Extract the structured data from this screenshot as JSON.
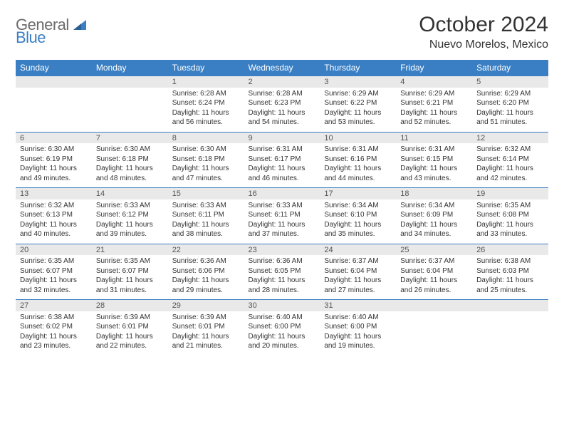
{
  "logo": {
    "text1": "General",
    "text2": "Blue",
    "color1": "#6b6b6b",
    "color2": "#3a7fc4"
  },
  "title": "October 2024",
  "location": "Nuevo Morelos, Mexico",
  "header_bg": "#3a7fc4",
  "daynum_bg": "#e9e9e9",
  "weekdays": [
    "Sunday",
    "Monday",
    "Tuesday",
    "Wednesday",
    "Thursday",
    "Friday",
    "Saturday"
  ],
  "weeks": [
    [
      {
        "day": "",
        "lines": []
      },
      {
        "day": "",
        "lines": []
      },
      {
        "day": "1",
        "lines": [
          "Sunrise: 6:28 AM",
          "Sunset: 6:24 PM",
          "Daylight: 11 hours and 56 minutes."
        ]
      },
      {
        "day": "2",
        "lines": [
          "Sunrise: 6:28 AM",
          "Sunset: 6:23 PM",
          "Daylight: 11 hours and 54 minutes."
        ]
      },
      {
        "day": "3",
        "lines": [
          "Sunrise: 6:29 AM",
          "Sunset: 6:22 PM",
          "Daylight: 11 hours and 53 minutes."
        ]
      },
      {
        "day": "4",
        "lines": [
          "Sunrise: 6:29 AM",
          "Sunset: 6:21 PM",
          "Daylight: 11 hours and 52 minutes."
        ]
      },
      {
        "day": "5",
        "lines": [
          "Sunrise: 6:29 AM",
          "Sunset: 6:20 PM",
          "Daylight: 11 hours and 51 minutes."
        ]
      }
    ],
    [
      {
        "day": "6",
        "lines": [
          "Sunrise: 6:30 AM",
          "Sunset: 6:19 PM",
          "Daylight: 11 hours and 49 minutes."
        ]
      },
      {
        "day": "7",
        "lines": [
          "Sunrise: 6:30 AM",
          "Sunset: 6:18 PM",
          "Daylight: 11 hours and 48 minutes."
        ]
      },
      {
        "day": "8",
        "lines": [
          "Sunrise: 6:30 AM",
          "Sunset: 6:18 PM",
          "Daylight: 11 hours and 47 minutes."
        ]
      },
      {
        "day": "9",
        "lines": [
          "Sunrise: 6:31 AM",
          "Sunset: 6:17 PM",
          "Daylight: 11 hours and 46 minutes."
        ]
      },
      {
        "day": "10",
        "lines": [
          "Sunrise: 6:31 AM",
          "Sunset: 6:16 PM",
          "Daylight: 11 hours and 44 minutes."
        ]
      },
      {
        "day": "11",
        "lines": [
          "Sunrise: 6:31 AM",
          "Sunset: 6:15 PM",
          "Daylight: 11 hours and 43 minutes."
        ]
      },
      {
        "day": "12",
        "lines": [
          "Sunrise: 6:32 AM",
          "Sunset: 6:14 PM",
          "Daylight: 11 hours and 42 minutes."
        ]
      }
    ],
    [
      {
        "day": "13",
        "lines": [
          "Sunrise: 6:32 AM",
          "Sunset: 6:13 PM",
          "Daylight: 11 hours and 40 minutes."
        ]
      },
      {
        "day": "14",
        "lines": [
          "Sunrise: 6:33 AM",
          "Sunset: 6:12 PM",
          "Daylight: 11 hours and 39 minutes."
        ]
      },
      {
        "day": "15",
        "lines": [
          "Sunrise: 6:33 AM",
          "Sunset: 6:11 PM",
          "Daylight: 11 hours and 38 minutes."
        ]
      },
      {
        "day": "16",
        "lines": [
          "Sunrise: 6:33 AM",
          "Sunset: 6:11 PM",
          "Daylight: 11 hours and 37 minutes."
        ]
      },
      {
        "day": "17",
        "lines": [
          "Sunrise: 6:34 AM",
          "Sunset: 6:10 PM",
          "Daylight: 11 hours and 35 minutes."
        ]
      },
      {
        "day": "18",
        "lines": [
          "Sunrise: 6:34 AM",
          "Sunset: 6:09 PM",
          "Daylight: 11 hours and 34 minutes."
        ]
      },
      {
        "day": "19",
        "lines": [
          "Sunrise: 6:35 AM",
          "Sunset: 6:08 PM",
          "Daylight: 11 hours and 33 minutes."
        ]
      }
    ],
    [
      {
        "day": "20",
        "lines": [
          "Sunrise: 6:35 AM",
          "Sunset: 6:07 PM",
          "Daylight: 11 hours and 32 minutes."
        ]
      },
      {
        "day": "21",
        "lines": [
          "Sunrise: 6:35 AM",
          "Sunset: 6:07 PM",
          "Daylight: 11 hours and 31 minutes."
        ]
      },
      {
        "day": "22",
        "lines": [
          "Sunrise: 6:36 AM",
          "Sunset: 6:06 PM",
          "Daylight: 11 hours and 29 minutes."
        ]
      },
      {
        "day": "23",
        "lines": [
          "Sunrise: 6:36 AM",
          "Sunset: 6:05 PM",
          "Daylight: 11 hours and 28 minutes."
        ]
      },
      {
        "day": "24",
        "lines": [
          "Sunrise: 6:37 AM",
          "Sunset: 6:04 PM",
          "Daylight: 11 hours and 27 minutes."
        ]
      },
      {
        "day": "25",
        "lines": [
          "Sunrise: 6:37 AM",
          "Sunset: 6:04 PM",
          "Daylight: 11 hours and 26 minutes."
        ]
      },
      {
        "day": "26",
        "lines": [
          "Sunrise: 6:38 AM",
          "Sunset: 6:03 PM",
          "Daylight: 11 hours and 25 minutes."
        ]
      }
    ],
    [
      {
        "day": "27",
        "lines": [
          "Sunrise: 6:38 AM",
          "Sunset: 6:02 PM",
          "Daylight: 11 hours and 23 minutes."
        ]
      },
      {
        "day": "28",
        "lines": [
          "Sunrise: 6:39 AM",
          "Sunset: 6:01 PM",
          "Daylight: 11 hours and 22 minutes."
        ]
      },
      {
        "day": "29",
        "lines": [
          "Sunrise: 6:39 AM",
          "Sunset: 6:01 PM",
          "Daylight: 11 hours and 21 minutes."
        ]
      },
      {
        "day": "30",
        "lines": [
          "Sunrise: 6:40 AM",
          "Sunset: 6:00 PM",
          "Daylight: 11 hours and 20 minutes."
        ]
      },
      {
        "day": "31",
        "lines": [
          "Sunrise: 6:40 AM",
          "Sunset: 6:00 PM",
          "Daylight: 11 hours and 19 minutes."
        ]
      },
      {
        "day": "",
        "lines": []
      },
      {
        "day": "",
        "lines": []
      }
    ]
  ]
}
